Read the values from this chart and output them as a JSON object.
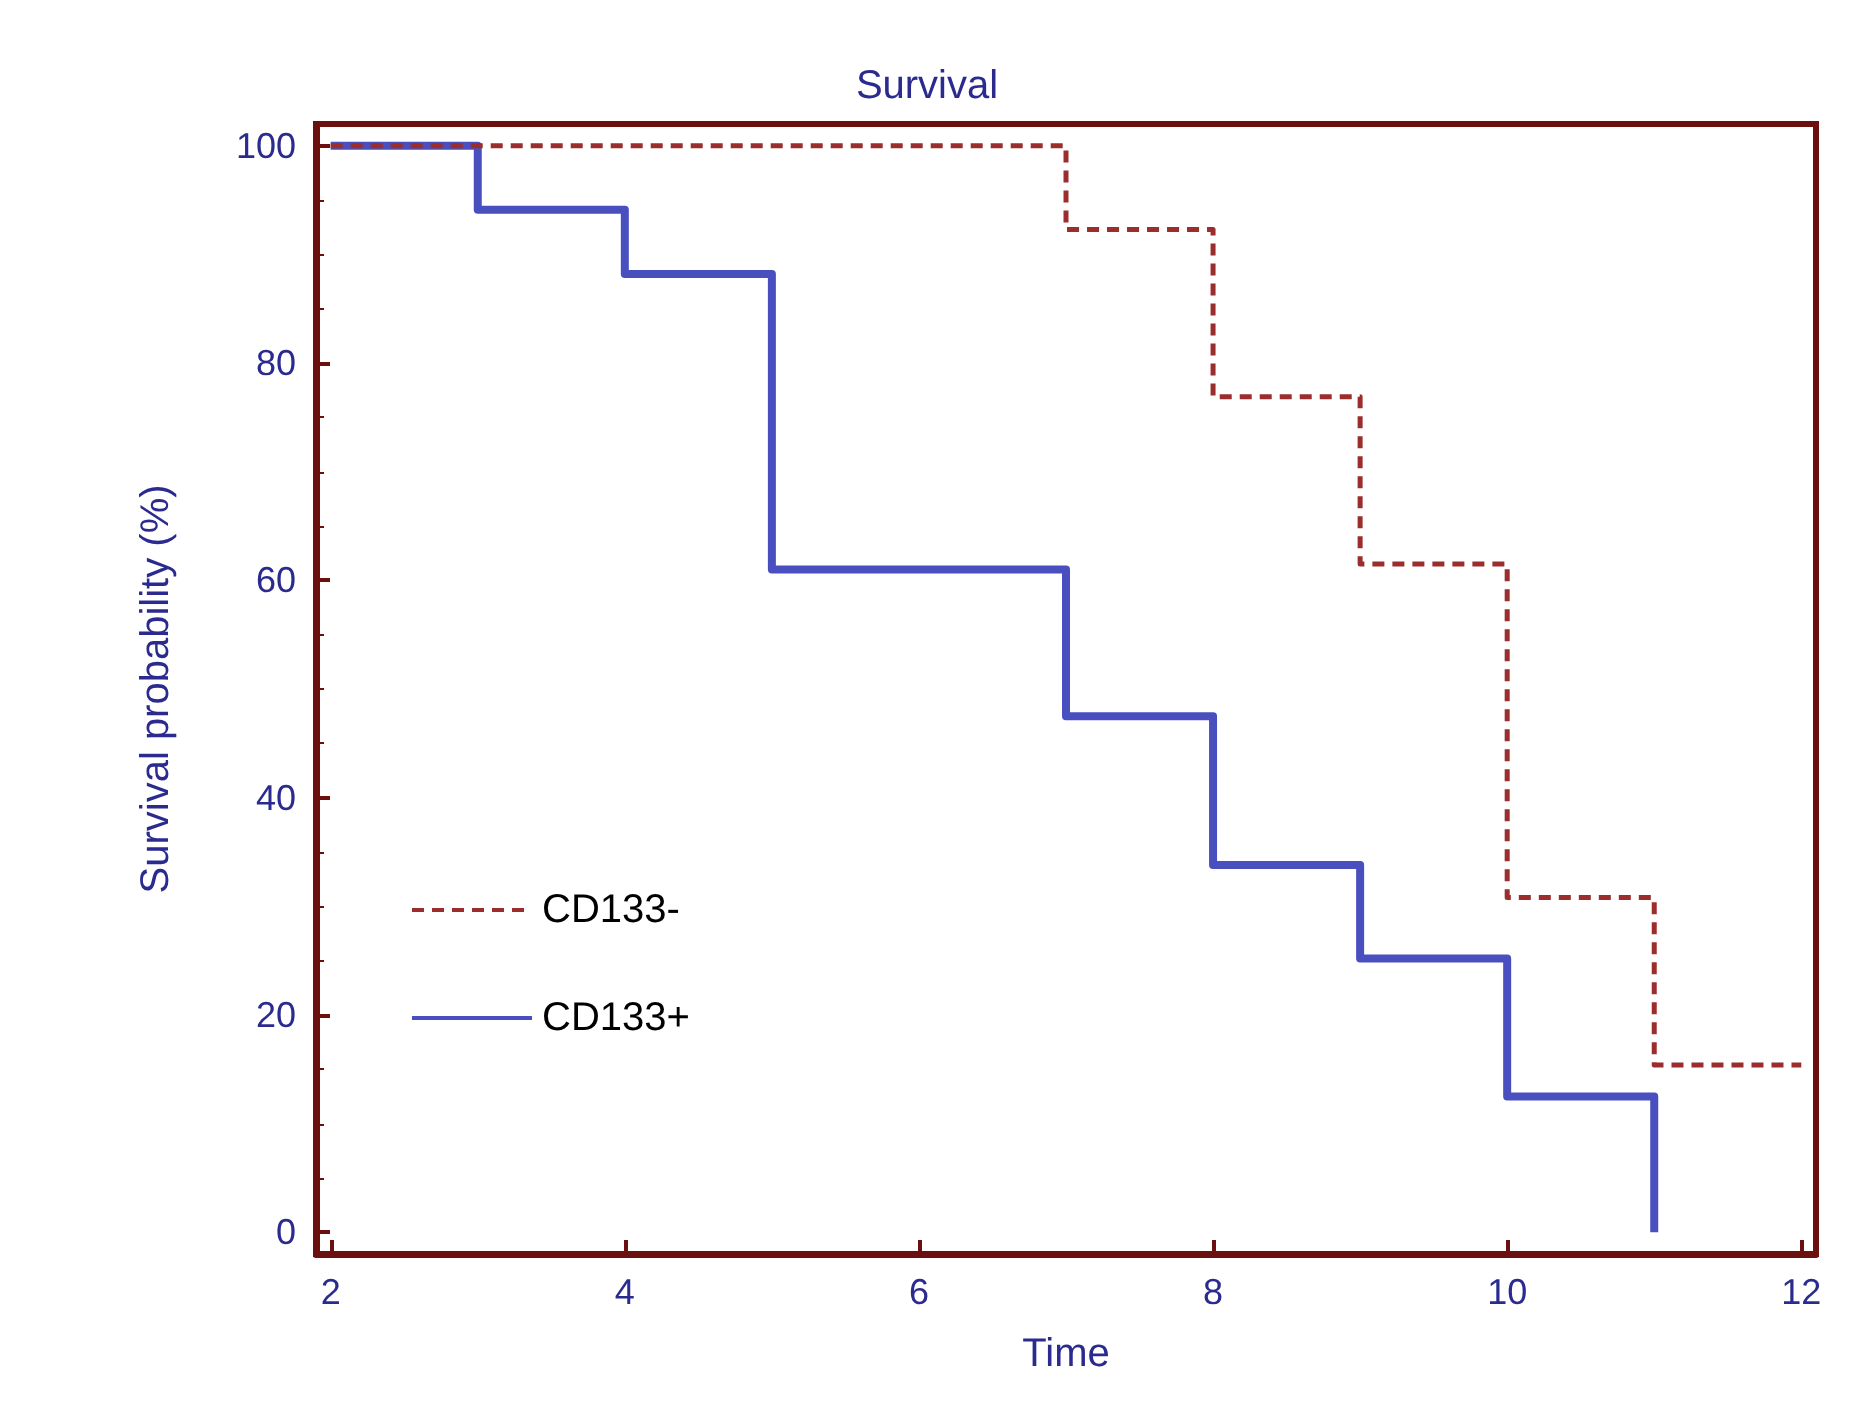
{
  "chart_data": {
    "type": "step",
    "title": "Survival",
    "xlabel": "Time",
    "ylabel": "Survival probability (%)",
    "xlim": [
      1.9,
      12.1
    ],
    "xticks": [
      2,
      4,
      6,
      8,
      10,
      12
    ],
    "ylim": [
      -2,
      102
    ],
    "yticks": [
      0,
      20,
      40,
      60,
      80,
      100
    ],
    "series": [
      {
        "name": "CD133-",
        "color": "#9b2d2d",
        "line_style": "dashed",
        "x": [
          2,
          7,
          8,
          9,
          10,
          11,
          12
        ],
        "values": [
          100,
          92.3,
          76.9,
          61.5,
          30.8,
          15.4,
          15.4
        ]
      },
      {
        "name": "CD133+",
        "color": "#4a4fbf",
        "line_style": "solid",
        "x": [
          2,
          3,
          4,
          5,
          7,
          8,
          9,
          10,
          11
        ],
        "values": [
          100,
          94.1,
          88.2,
          61,
          47.5,
          33.8,
          25.2,
          12.5,
          0
        ]
      }
    ],
    "grid": false,
    "legend": "bottom left",
    "marker": "none"
  }
}
